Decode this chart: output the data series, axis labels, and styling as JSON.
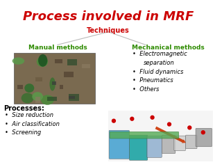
{
  "title": "Process involved in MRF",
  "title_color": "#cc0000",
  "title_fontsize": 13,
  "techniques_label": "Techniques",
  "techniques_color": "#cc0000",
  "techniques_fontsize": 7,
  "manual_label": "Manual methods",
  "manual_color": "#2e8b00",
  "manual_fontsize": 6.5,
  "mechanical_label": "Mechanical methods",
  "mechanical_color": "#2e8b00",
  "mechanical_fontsize": 6.5,
  "mechanical_items": [
    "Electromagnetic",
    "separation",
    "Fluid dynamics",
    "Pneumatics",
    "Others"
  ],
  "mechanical_bullet": [
    true,
    false,
    true,
    true,
    true
  ],
  "processes_label": "Processes:",
  "processes_fontsize": 7,
  "processes_items": [
    "Size reduction",
    "Air classification",
    "Screening"
  ],
  "bg_color": "#ffffff",
  "line_color": "#bbbbbb",
  "text_color": "#000000",
  "item_fontsize": 6,
  "proc_fontsize": 6
}
